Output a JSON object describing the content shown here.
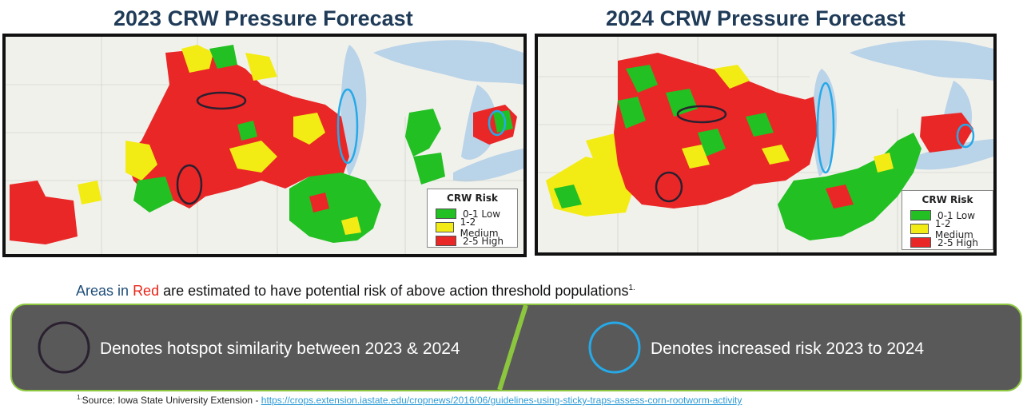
{
  "maps": [
    {
      "title": "2023 CRW Pressure Forecast",
      "legend": {
        "title": "CRW Risk",
        "items": [
          {
            "label": "0-1 Low",
            "color": "#22c022"
          },
          {
            "label": "1-2 Medium",
            "color": "#f2ec14"
          },
          {
            "label": "2-5 High",
            "color": "#ea2727"
          }
        ]
      }
    },
    {
      "title": "2024 CRW Pressure Forecast",
      "legend": {
        "title": "CRW Risk",
        "items": [
          {
            "label": "0-1 Low",
            "color": "#22c022"
          },
          {
            "label": "1-2 Medium",
            "color": "#f2ec14"
          },
          {
            "label": "2-5 High",
            "color": "#ea2727"
          }
        ]
      }
    }
  ],
  "note": {
    "part1": "Areas in",
    "part2": "Red",
    "part3": "are estimated to have potential risk of above action threshold populations",
    "footnote_mark": "1."
  },
  "banner": {
    "left_text": "Denotes hotspot similarity between 2023 & 2024",
    "right_text": "Denotes increased risk 2023 to 2024",
    "hotspot_color": "#2a2030",
    "increase_color": "#26a9e8",
    "background": "#595959",
    "border": "#8cc63f"
  },
  "source": {
    "mark": "1.",
    "prefix": "Source:  Iowa State University Extension - ",
    "link": "https://crops.extension.iastate.edu/cropnews/2016/06/guidelines-using-sticky-traps-assess-corn-rootworm-activity"
  }
}
